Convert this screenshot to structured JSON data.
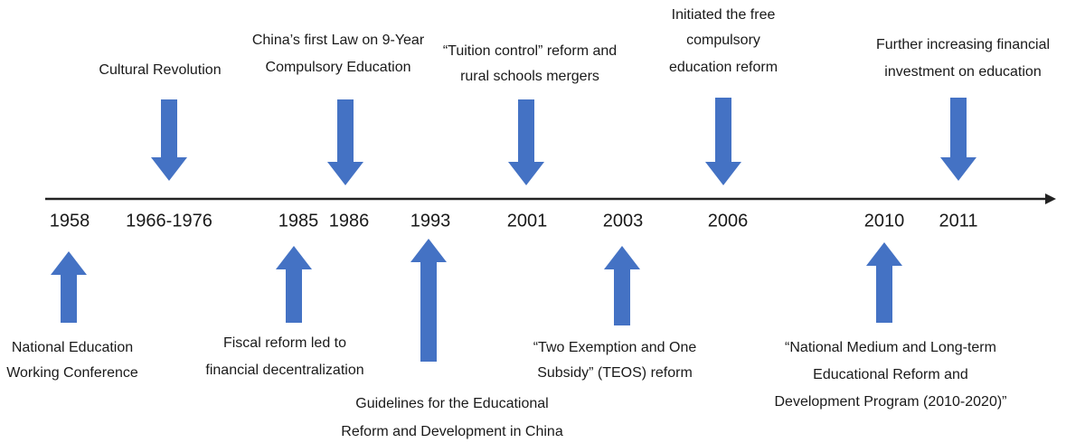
{
  "years": [
    "1958",
    "1966-1976",
    "1985",
    "1986",
    "1993",
    "2001",
    "2003",
    "2006",
    "2010",
    "2011"
  ],
  "events_above": [
    {
      "lines": [
        "Cultural Revolution"
      ]
    },
    {
      "lines": [
        "China’s first Law on 9-Year",
        "Compulsory Education"
      ]
    },
    {
      "lines": [
        "“Tuition control” reform and",
        "rural schools mergers"
      ]
    },
    {
      "lines": [
        "Initiated the free",
        "compulsory",
        "education reform"
      ]
    },
    {
      "lines": [
        "Further increasing financial",
        "investment on education"
      ]
    }
  ],
  "events_below": [
    {
      "lines": [
        "National Education",
        "Working Conference"
      ]
    },
    {
      "lines": [
        "Fiscal reform led to",
        "financial decentralization"
      ]
    },
    {
      "lines": [
        "Guidelines for the Educational",
        "Reform and Development in China"
      ]
    },
    {
      "lines": [
        "“Two Exemption and One",
        "Subsidy” (TEOS) reform"
      ]
    },
    {
      "lines": [
        "“National Medium and Long-term",
        "Educational Reform and",
        "Development Program (2010-2020)”"
      ]
    }
  ]
}
